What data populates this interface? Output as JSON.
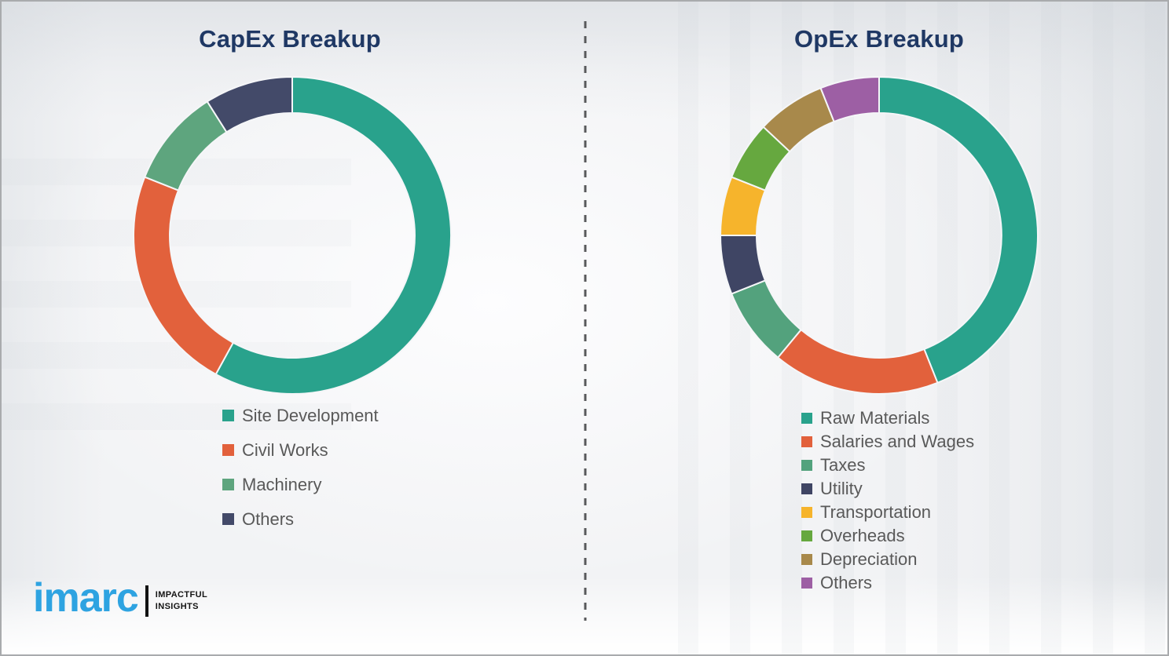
{
  "theme": {
    "title_color": "#1F3864",
    "legend_text_color": "#595959",
    "logo_blue": "#2EA3E1",
    "divider_color": "#58595B",
    "segment_gap_color": "#f5f6f8"
  },
  "brand": {
    "logo_text": "imarc",
    "tagline_line1": "IMPACTFUL",
    "tagline_line2": "INSIGHTS"
  },
  "chart_data": [
    {
      "type": "pie",
      "variant": "donut",
      "title": "CapEx Breakup",
      "legend_position": "below-left",
      "start_angle_deg": 0,
      "direction": "clockwise",
      "values_unit": "% (estimated from arc angles)",
      "categories": [
        "Site Development",
        "Civil Works",
        "Machinery",
        "Others"
      ],
      "values": [
        58,
        23,
        10,
        9
      ],
      "colors": [
        "#29A28C",
        "#E2613C",
        "#5EA57E",
        "#434A69"
      ]
    },
    {
      "type": "pie",
      "variant": "donut",
      "title": "OpEx Breakup",
      "legend_position": "below-left",
      "start_angle_deg": 0,
      "direction": "clockwise",
      "values_unit": "% (estimated from arc angles)",
      "categories": [
        "Raw Materials",
        "Salaries and Wages",
        "Taxes",
        "Utility",
        "Transportation",
        "Overheads",
        "Depreciation",
        "Others"
      ],
      "values": [
        44,
        17,
        8,
        6,
        6,
        6,
        7,
        6
      ],
      "colors": [
        "#29A28C",
        "#E2613C",
        "#53A27D",
        "#3F4564",
        "#F6B42C",
        "#66A83F",
        "#A8894B",
        "#9D5FA4"
      ]
    }
  ]
}
